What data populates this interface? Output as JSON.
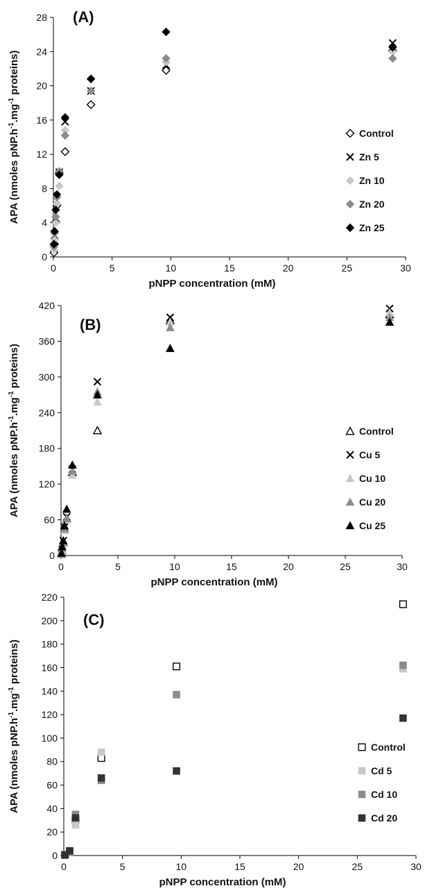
{
  "chart_data": [
    {
      "type": "scatter",
      "panel_label": "(A)",
      "xlabel": "pNPP concentration (mM)",
      "ylabel_parts": [
        "APA (nmoles pNP.h",
        "-1",
        ".mg",
        "-1",
        " proteins)"
      ],
      "xlim": [
        0,
        30
      ],
      "ylim": [
        0,
        28
      ],
      "xticks": [
        0,
        5,
        10,
        15,
        20,
        25,
        30
      ],
      "yticks": [
        0,
        4,
        8,
        12,
        16,
        20,
        24,
        28
      ],
      "legend_position": "right",
      "series": [
        {
          "name": "Control",
          "marker": "diamond-open",
          "color": "#000000",
          "x": [
            0.05,
            0.1,
            0.2,
            0.3,
            0.5,
            1.0,
            3.2,
            9.6,
            28.9
          ],
          "y": [
            0.5,
            1.5,
            4.1,
            6.0,
            9.8,
            12.3,
            17.8,
            21.8,
            24.1
          ]
        },
        {
          "name": "Zn 5",
          "marker": "x",
          "color": "#000000",
          "x": [
            0.05,
            0.1,
            0.2,
            0.3,
            0.5,
            1.0,
            3.2,
            9.6,
            28.9
          ],
          "y": [
            1.0,
            2.5,
            4.3,
            6.6,
            9.9,
            15.8,
            19.4,
            22.4,
            25.0
          ]
        },
        {
          "name": "Zn 10",
          "marker": "diamond",
          "color": "#c8c8c8",
          "x": [
            0.05,
            0.1,
            0.2,
            0.3,
            0.5,
            1.0,
            3.2,
            9.6,
            28.9
          ],
          "y": [
            0.8,
            2.0,
            4.0,
            6.2,
            8.3,
            14.8,
            20.9,
            22.8,
            24.0
          ]
        },
        {
          "name": "Zn 20",
          "marker": "diamond",
          "color": "#8c8c8c",
          "x": [
            0.05,
            0.1,
            0.2,
            0.3,
            0.5,
            1.0,
            3.2,
            9.6,
            28.9
          ],
          "y": [
            1.2,
            2.8,
            4.7,
            7.0,
            10.0,
            14.2,
            19.4,
            23.2,
            23.2
          ]
        },
        {
          "name": "Zn 25",
          "marker": "diamond",
          "color": "#000000",
          "x": [
            0.05,
            0.1,
            0.2,
            0.3,
            0.5,
            1.0,
            3.2,
            9.6,
            28.9
          ],
          "y": [
            1.5,
            3.0,
            5.5,
            7.3,
            9.6,
            16.3,
            20.8,
            26.3,
            24.5
          ]
        }
      ]
    },
    {
      "type": "scatter",
      "panel_label": "(B)",
      "xlabel": "pNPP concentration (mM)",
      "ylabel_parts": [
        "APA (nmoles pNP.h",
        "-1",
        ".mg",
        "-1",
        " proteins)"
      ],
      "xlim": [
        0,
        30
      ],
      "ylim": [
        0,
        420
      ],
      "xticks": [
        0,
        5,
        10,
        15,
        20,
        25,
        30
      ],
      "yticks": [
        0,
        60,
        120,
        180,
        240,
        300,
        360,
        420
      ],
      "legend_position": "right",
      "series": [
        {
          "name": "Control",
          "marker": "triangle-open",
          "color": "#000000",
          "x": [
            0.05,
            0.1,
            0.2,
            0.3,
            0.5,
            1.0,
            3.2,
            9.6,
            28.9
          ],
          "y": [
            2,
            8,
            22,
            45,
            62,
            140,
            210,
            395,
            405
          ]
        },
        {
          "name": "Cu 5",
          "marker": "x",
          "color": "#000000",
          "x": [
            0.05,
            0.1,
            0.2,
            0.3,
            0.5,
            1.0,
            3.2,
            9.6,
            28.9
          ],
          "y": [
            3,
            10,
            25,
            48,
            65,
            145,
            292,
            400,
            415
          ]
        },
        {
          "name": "Cu 10",
          "marker": "triangle",
          "color": "#c8c8c8",
          "x": [
            0.05,
            0.1,
            0.2,
            0.3,
            0.5,
            1.0,
            3.2,
            9.6,
            28.9
          ],
          "y": [
            2,
            8,
            20,
            42,
            60,
            135,
            258,
            392,
            408
          ]
        },
        {
          "name": "Cu 20",
          "marker": "triangle",
          "color": "#8c8c8c",
          "x": [
            0.05,
            0.1,
            0.2,
            0.3,
            0.5,
            1.0,
            3.2,
            9.6,
            28.9
          ],
          "y": [
            3,
            12,
            22,
            45,
            62,
            142,
            275,
            383,
            400
          ]
        },
        {
          "name": "Cu 25",
          "marker": "triangle",
          "color": "#000000",
          "x": [
            0.05,
            0.1,
            0.2,
            0.3,
            0.5,
            1.0,
            3.2,
            9.6,
            28.9
          ],
          "y": [
            4,
            15,
            25,
            50,
            78,
            152,
            270,
            348,
            392
          ]
        }
      ]
    },
    {
      "type": "scatter",
      "panel_label": "(C)",
      "xlabel": "pNPP concentration (mM)",
      "ylabel_parts": [
        "APA (nmoles pNP.h",
        "-1",
        ".mg",
        "-1",
        " proteins)"
      ],
      "xlim": [
        0,
        30
      ],
      "ylim": [
        0,
        220
      ],
      "xticks": [
        0,
        5,
        10,
        15,
        20,
        25,
        30
      ],
      "yticks": [
        0,
        20,
        40,
        60,
        80,
        100,
        120,
        140,
        160,
        180,
        200,
        220
      ],
      "legend_position": "right",
      "series": [
        {
          "name": "Control",
          "marker": "square-open",
          "color": "#000000",
          "x": [
            0.1,
            0.5,
            1.0,
            3.2,
            9.6,
            28.9
          ],
          "y": [
            0.5,
            3,
            30,
            83,
            161,
            214
          ]
        },
        {
          "name": "Cd 5",
          "marker": "square",
          "color": "#c8c8c8",
          "x": [
            0.1,
            0.5,
            1.0,
            3.2,
            9.6,
            28.9
          ],
          "y": [
            0.5,
            3,
            26,
            88,
            137,
            159
          ]
        },
        {
          "name": "Cd 10",
          "marker": "square",
          "color": "#8c8c8c",
          "x": [
            0.1,
            0.5,
            1.0,
            3.2,
            9.6,
            28.9
          ],
          "y": [
            0.5,
            3,
            35,
            64,
            137,
            162
          ]
        },
        {
          "name": "Cd 20",
          "marker": "square",
          "color": "#333333",
          "x": [
            0.1,
            0.5,
            1.0,
            3.2,
            9.6,
            28.9
          ],
          "y": [
            0.5,
            4,
            32,
            66,
            72,
            117
          ]
        }
      ]
    }
  ]
}
